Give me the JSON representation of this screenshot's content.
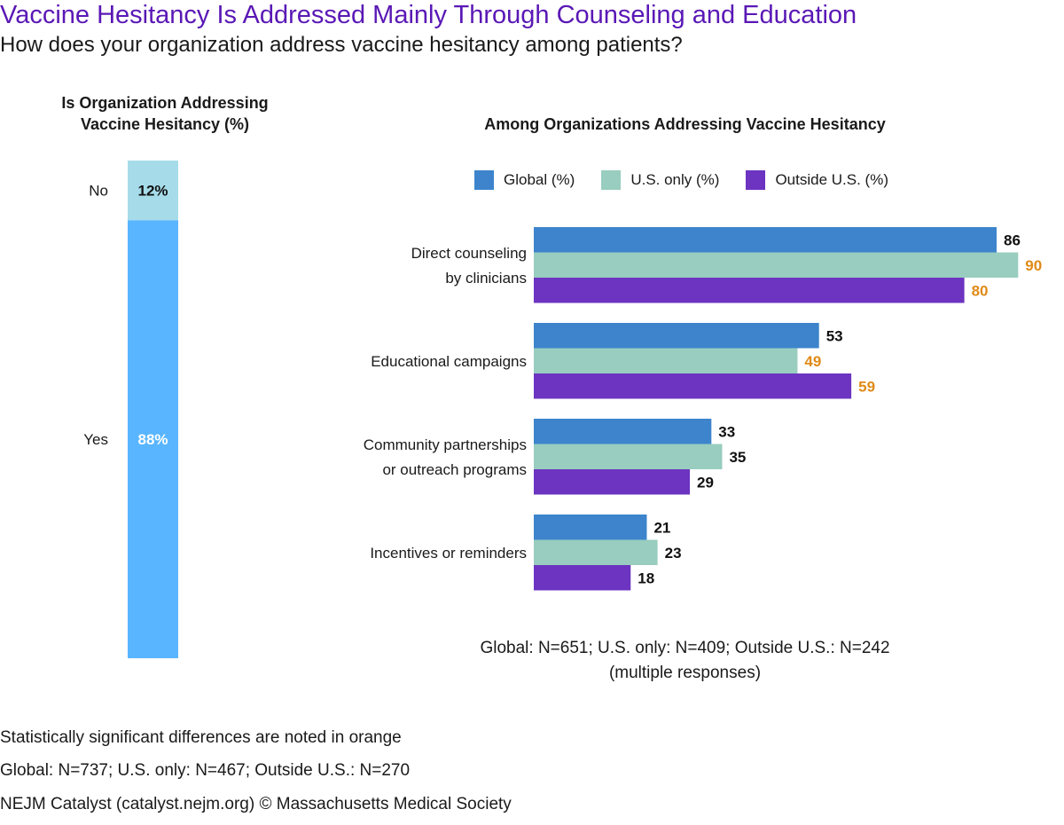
{
  "title": "Vaccine Hesitancy Is Addressed Mainly Through Counseling and Education",
  "subtitle": "How does your organization address vaccine hesitancy among patients?",
  "colors": {
    "title": "#5a18b5",
    "global": "#3d84cc",
    "us_only": "#98cdbf",
    "outside_us": "#6c34c1",
    "stack_no": "#a6dcea",
    "stack_yes": "#59b5ff",
    "significant": "#e08a16",
    "normal_label": "#111111"
  },
  "left_panel": {
    "title_line1": "Is Organization Addressing",
    "title_line2": "Vaccine Hesitancy (%)"
  },
  "right_panel": {
    "title": "Among Organizations Addressing Vaccine Hesitancy",
    "sample_line1": "Global: N=651; U.S. only: N=409; Outside U.S.: N=242",
    "sample_line2": "(multiple responses)"
  },
  "footnotes": {
    "significance": "Statistically significant differences are noted in orange",
    "sample": "Global: N=737; U.S. only: N=467; Outside U.S.: N=270",
    "source": "NEJM Catalyst (catalyst.nejm.org) © Massachusetts Medical Society"
  },
  "chart_data": [
    {
      "type": "bar",
      "orientation": "vertical-stacked",
      "title": "Is Organization Addressing Vaccine Hesitancy (%)",
      "categories": [
        "No",
        "Yes"
      ],
      "values": [
        12,
        88
      ],
      "value_labels": [
        "12%",
        "88%"
      ],
      "ylim": [
        0,
        100
      ]
    },
    {
      "type": "bar",
      "orientation": "horizontal",
      "title": "Among Organizations Addressing Vaccine Hesitancy",
      "categories": [
        [
          "Direct counseling",
          "by clinicians"
        ],
        [
          "Educational campaigns"
        ],
        [
          "Community partnerships",
          "or outreach programs"
        ],
        [
          "Incentives or reminders"
        ]
      ],
      "series": [
        {
          "name": "Global (%)",
          "values": [
            86,
            53,
            33,
            21
          ],
          "significant": [
            false,
            false,
            false,
            false
          ]
        },
        {
          "name": "U.S. only (%)",
          "values": [
            90,
            49,
            35,
            23
          ],
          "significant": [
            true,
            true,
            false,
            false
          ]
        },
        {
          "name": "Outside U.S. (%)",
          "values": [
            80,
            59,
            29,
            18
          ],
          "significant": [
            true,
            true,
            false,
            false
          ]
        }
      ],
      "xlim": [
        0,
        100
      ],
      "grid": false,
      "legend": "top"
    }
  ]
}
